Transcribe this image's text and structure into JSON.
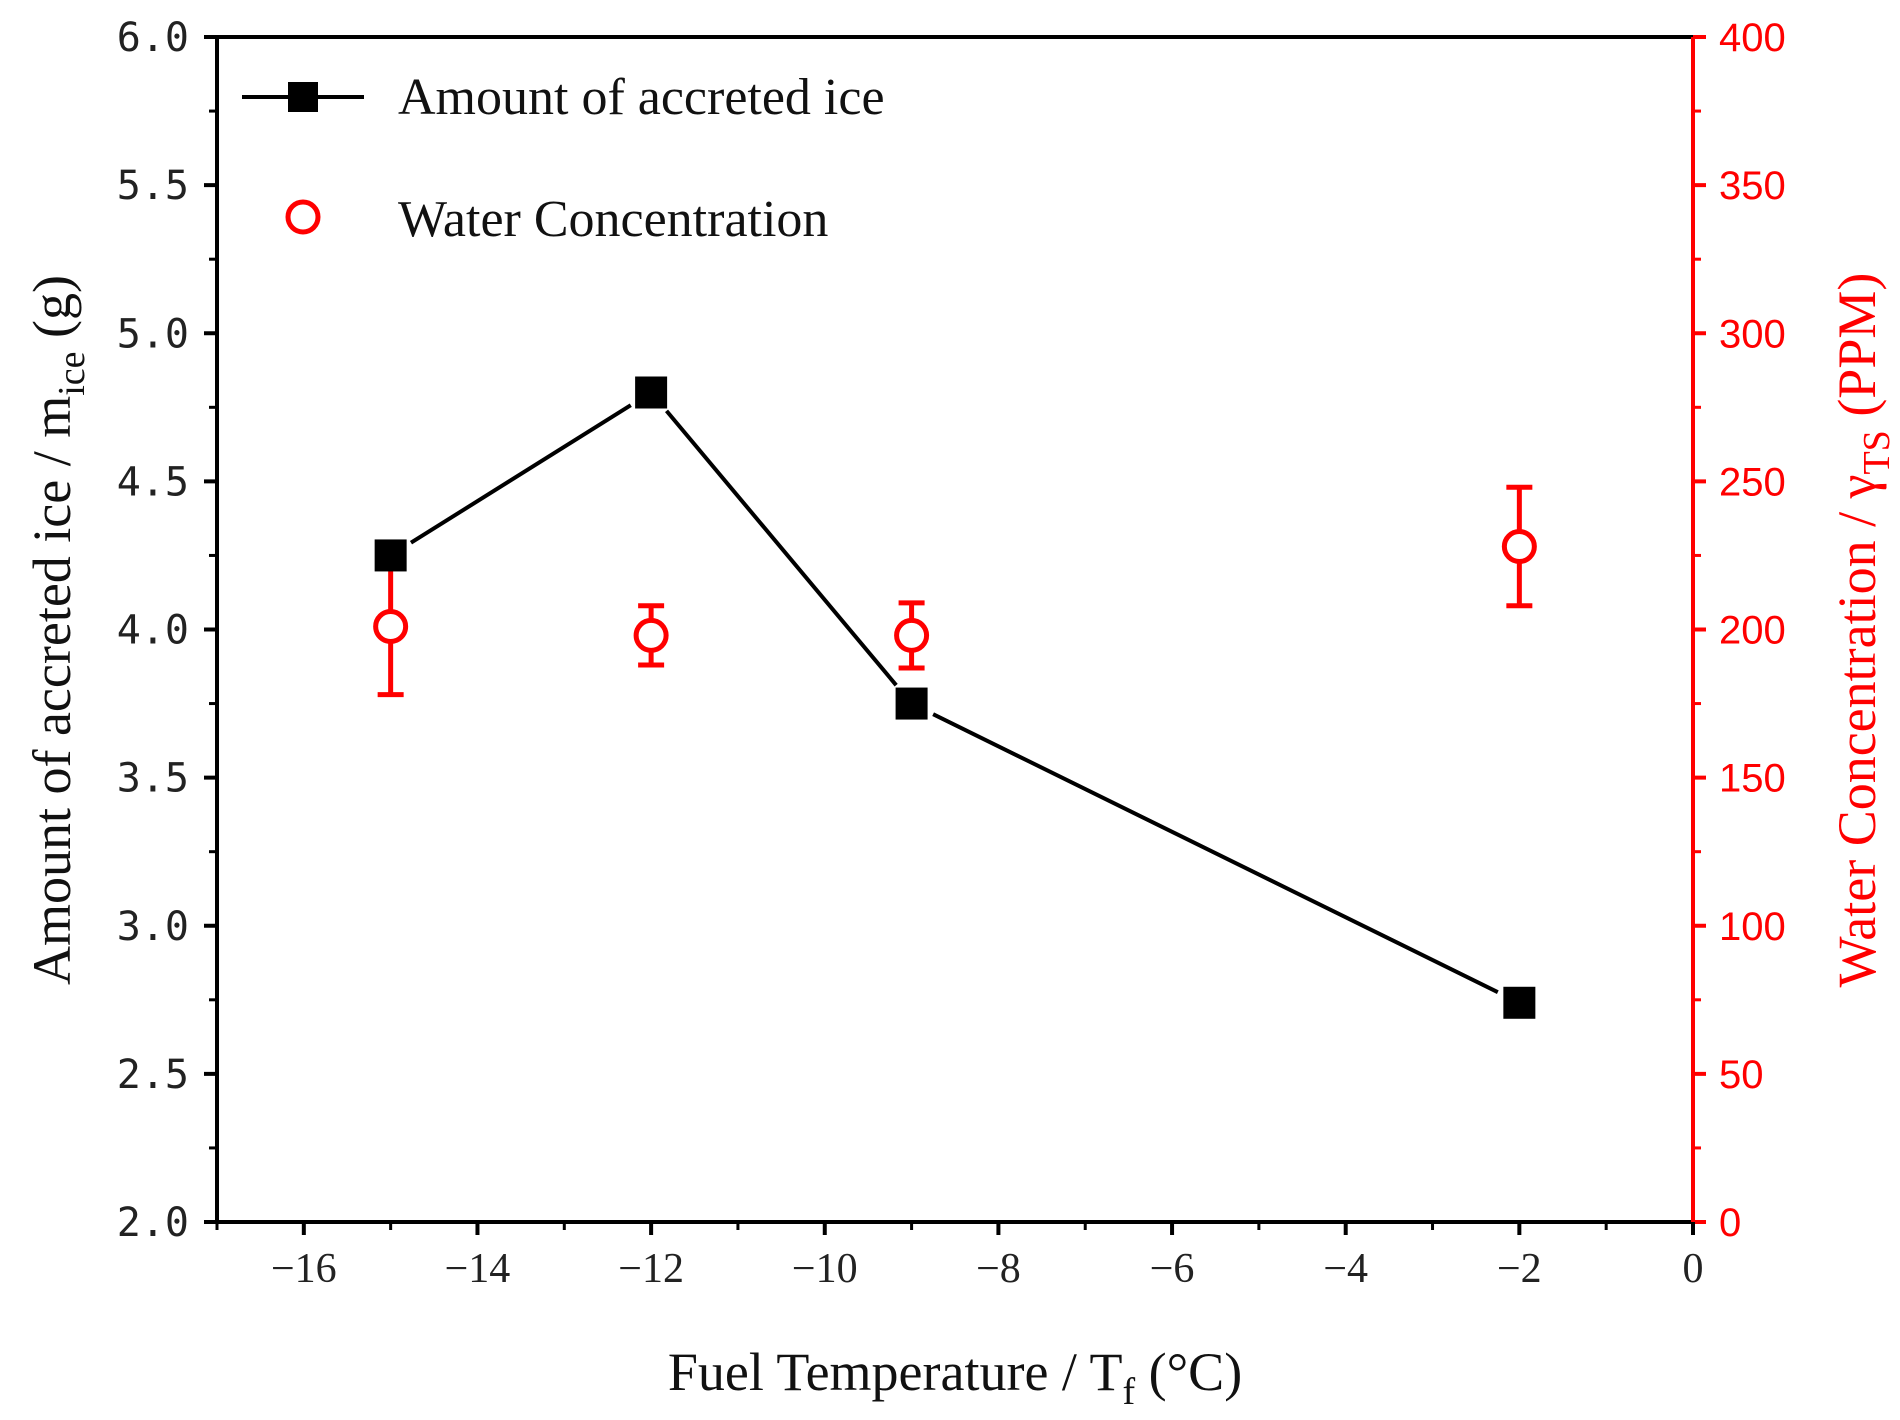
{
  "chart_data": {
    "type": "scatter",
    "title": "",
    "x": [
      -15,
      -12,
      -9,
      -2
    ],
    "xlim": [
      -17,
      0
    ],
    "x_ticks": [
      "−16",
      "−14",
      "−12",
      "−10",
      "−8",
      "−6",
      "−4",
      "−2",
      "0"
    ],
    "xlabel": {
      "main": "Fuel Temperature / T",
      "sub": "f",
      "tail": " (°C)"
    },
    "ylabel_left": {
      "main": "Amount of accreted ice / m",
      "sub": "ice",
      "tail": " (g)"
    },
    "ylabel_right": {
      "main": "Water Concentration / γ",
      "sub": "TS",
      "tail": " (PPM)"
    },
    "ylim_left": [
      2.0,
      6.0
    ],
    "ylim_right": [
      0,
      400
    ],
    "y_ticks_left": [
      "2.0",
      "2.5",
      "3.0",
      "3.5",
      "4.0",
      "4.5",
      "5.0",
      "5.5",
      "6.0"
    ],
    "y_ticks_right": [
      "0",
      "50",
      "100",
      "150",
      "200",
      "250",
      "300",
      "350",
      "400"
    ],
    "legend_position": "top-left",
    "series": [
      {
        "name": "Amount of accreted ice",
        "axis": "left",
        "marker": "filled-square",
        "line": true,
        "color": "#000000",
        "values": [
          4.25,
          4.8,
          3.75,
          2.74
        ]
      },
      {
        "name": "Water Concentration",
        "axis": "right",
        "marker": "open-circle",
        "line": false,
        "color": "#ff0000",
        "values": [
          201,
          198,
          198,
          228
        ],
        "errors": [
          23,
          10,
          11,
          20
        ]
      }
    ]
  }
}
